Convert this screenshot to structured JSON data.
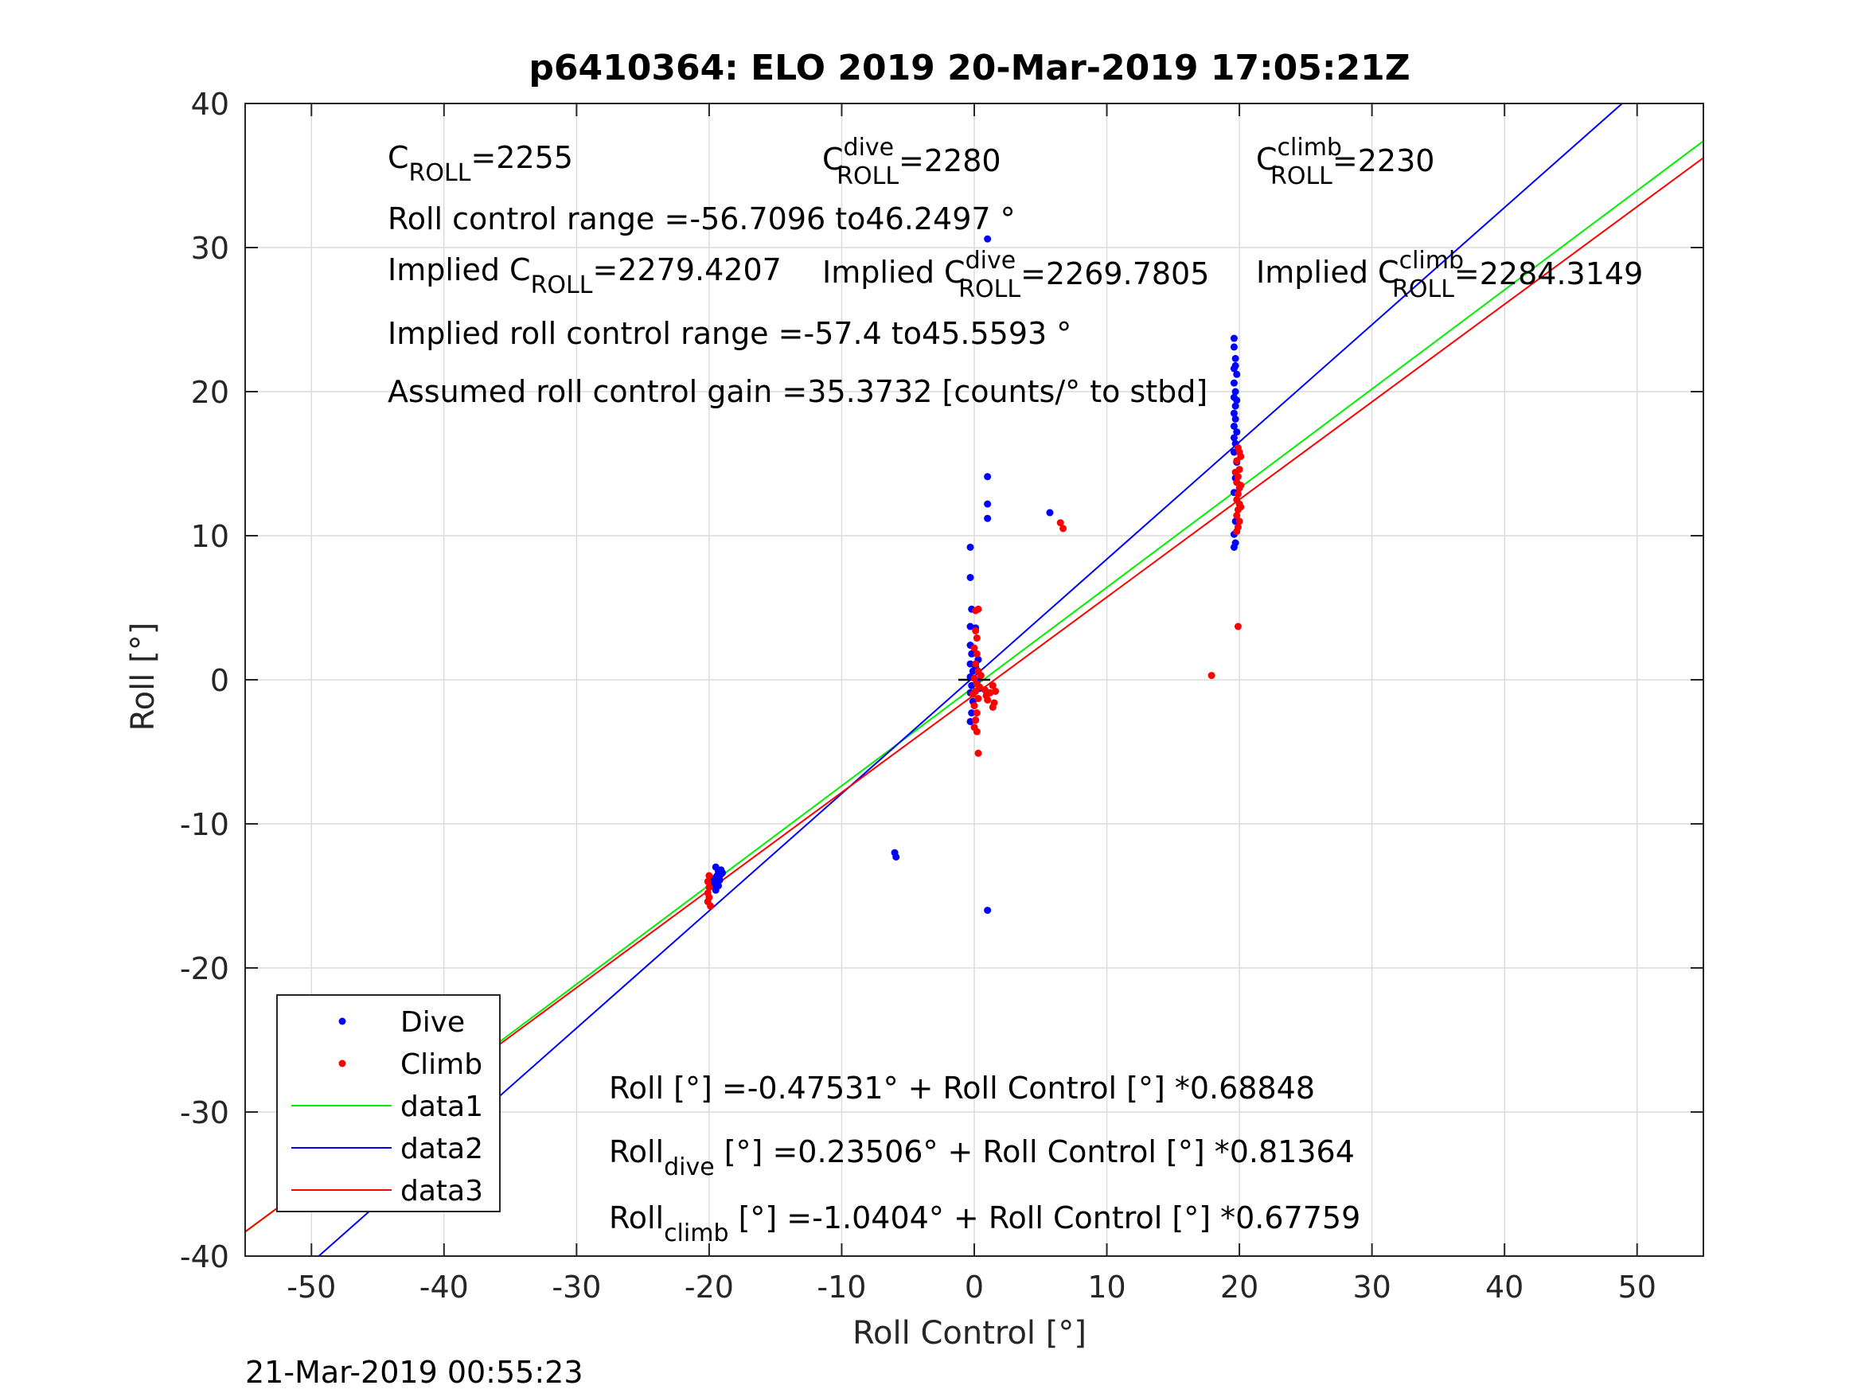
{
  "chart_data": {
    "type": "scatter",
    "title": "p6410364: ELO 2019 20-Mar-2019 17:05:21Z",
    "xlabel": "Roll Control [°]",
    "ylabel": "Roll [°]",
    "xlim": [
      -55,
      55
    ],
    "ylim": [
      -40,
      40
    ],
    "xticks": [
      "-50",
      "-40",
      "-30",
      "-20",
      "-10",
      "0",
      "10",
      "20",
      "30",
      "40",
      "50"
    ],
    "yticks": [
      "40",
      "30",
      "20",
      "10",
      "0",
      "-10",
      "-20",
      "-30",
      "-40"
    ],
    "grid": true,
    "timestamp": "21-Mar-2019 00:55:23",
    "colors": {
      "dive": "#0000ff",
      "climb": "#ff0000",
      "data1": "#00ee00",
      "data2": "#0000ff",
      "data3": "#ff0000"
    },
    "annotations": {
      "c_roll": {
        "base": "C",
        "sub": "ROLL",
        "value": "=2255"
      },
      "c_roll_dive": {
        "base": "C",
        "sup": "dive",
        "sub": "ROLL",
        "value": "=2280"
      },
      "c_roll_climb": {
        "base": "C",
        "sup": "climb",
        "sub": "ROLL",
        "value": "=2230"
      },
      "range": "Roll control range =-56.7096 to46.2497 °",
      "implied_c_roll": {
        "base": "Implied C",
        "sub": "ROLL",
        "value": "=2279.4207"
      },
      "implied_c_roll_dive": {
        "base": "Implied C",
        "sup": "dive",
        "sub": "ROLL",
        "value": "=2269.7805"
      },
      "implied_c_roll_climb": {
        "base": "Implied C",
        "sup": "climb",
        "sub": "ROLL",
        "value": "=2284.3149"
      },
      "implied_range": "Implied roll control range =-57.4 to45.5593 °",
      "gain": "Assumed roll control gain =35.3732 [counts/° to stbd]",
      "fit_all": {
        "base": "Roll",
        "sub": "",
        "value": " [°] =-0.47531° + Roll Control [°] *0.68848"
      },
      "fit_dive": {
        "base": "Roll",
        "sub": "dive",
        "value": " [°] =0.23506° + Roll Control [°] *0.81364"
      },
      "fit_climb": {
        "base": "Roll",
        "sub": "climb",
        "value": " [°] =-1.0404° + Roll Control [°] *0.67759"
      }
    },
    "legend": {
      "placement": "bottom-left",
      "entries": [
        "Dive",
        "Climb",
        "data1",
        "data2",
        "data3"
      ]
    },
    "series": [
      {
        "name": "Dive",
        "kind": "points",
        "points": [
          [
            -19.5,
            -13.0
          ],
          [
            -19.3,
            -13.3
          ],
          [
            -19.1,
            -13.2
          ],
          [
            -19.4,
            -13.6
          ],
          [
            -19.2,
            -13.9
          ],
          [
            -19.6,
            -14.1
          ],
          [
            -19.3,
            -14.3
          ],
          [
            -19.5,
            -14.6
          ],
          [
            -19.1,
            -13.5
          ],
          [
            -19.7,
            -13.8
          ],
          [
            -19.0,
            -13.4
          ],
          [
            -19.6,
            -14.4
          ],
          [
            -6.0,
            -12.0
          ],
          [
            -5.9,
            -12.3
          ],
          [
            1.0,
            30.6
          ],
          [
            1.0,
            14.1
          ],
          [
            1.0,
            12.2
          ],
          [
            1.0,
            11.2
          ],
          [
            1.0,
            -16.0
          ],
          [
            5.7,
            11.6
          ],
          [
            -0.3,
            9.2
          ],
          [
            -0.3,
            7.1
          ],
          [
            -0.2,
            4.9
          ],
          [
            -0.3,
            3.7
          ],
          [
            0.1,
            3.6
          ],
          [
            -0.3,
            2.4
          ],
          [
            -0.2,
            1.8
          ],
          [
            -0.3,
            1.1
          ],
          [
            -0.1,
            0.6
          ],
          [
            -0.3,
            0.2
          ],
          [
            -0.2,
            -0.4
          ],
          [
            -0.3,
            -0.9
          ],
          [
            -0.1,
            -1.5
          ],
          [
            -0.2,
            -2.3
          ],
          [
            0.1,
            -2.8
          ],
          [
            -0.3,
            -2.9
          ],
          [
            0.3,
            1.4
          ],
          [
            0.2,
            -0.1
          ],
          [
            0.4,
            -0.6
          ],
          [
            0.1,
            0.9
          ],
          [
            19.6,
            23.7
          ],
          [
            19.6,
            23.1
          ],
          [
            19.7,
            22.3
          ],
          [
            19.6,
            21.6
          ],
          [
            19.8,
            21.2
          ],
          [
            19.6,
            20.6
          ],
          [
            19.7,
            20.0
          ],
          [
            19.6,
            19.6
          ],
          [
            19.7,
            19.0
          ],
          [
            19.6,
            18.5
          ],
          [
            19.7,
            18.1
          ],
          [
            19.6,
            17.6
          ],
          [
            19.8,
            17.2
          ],
          [
            19.6,
            16.8
          ],
          [
            19.7,
            16.4
          ],
          [
            19.6,
            9.2
          ],
          [
            19.7,
            9.5
          ],
          [
            19.6,
            10.1
          ],
          [
            19.7,
            11.0
          ],
          [
            19.6,
            13.0
          ],
          [
            19.7,
            14.0
          ],
          [
            19.8,
            15.1
          ],
          [
            19.6,
            15.8
          ],
          [
            19.7,
            21.8
          ],
          [
            19.8,
            19.4
          ]
        ]
      },
      {
        "name": "Climb",
        "kind": "points",
        "points": [
          [
            -20.1,
            -14.0
          ],
          [
            -20.0,
            -14.4
          ],
          [
            -20.1,
            -14.8
          ],
          [
            -20.0,
            -15.1
          ],
          [
            -20.1,
            -15.4
          ],
          [
            -19.9,
            -15.7
          ],
          [
            -20.0,
            -13.6
          ],
          [
            0.1,
            4.8
          ],
          [
            0.3,
            4.9
          ],
          [
            0.1,
            3.4
          ],
          [
            0.2,
            2.9
          ],
          [
            0.0,
            2.2
          ],
          [
            0.2,
            1.8
          ],
          [
            0.1,
            1.1
          ],
          [
            0.3,
            0.6
          ],
          [
            0.0,
            0.1
          ],
          [
            0.2,
            -0.3
          ],
          [
            0.1,
            -0.8
          ],
          [
            0.3,
            -1.3
          ],
          [
            0.0,
            -1.8
          ],
          [
            0.2,
            -2.3
          ],
          [
            0.1,
            -2.8
          ],
          [
            0.0,
            -3.3
          ],
          [
            0.2,
            -3.6
          ],
          [
            0.3,
            -5.1
          ],
          [
            -0.1,
            -1.0
          ],
          [
            0.4,
            -0.5
          ],
          [
            0.5,
            0.3
          ],
          [
            0.8,
            -0.7
          ],
          [
            1.0,
            -1.4
          ],
          [
            1.2,
            -0.9
          ],
          [
            1.4,
            -0.4
          ],
          [
            1.5,
            -1.6
          ],
          [
            1.4,
            -1.9
          ],
          [
            1.6,
            -0.8
          ],
          [
            0.9,
            -1.1
          ],
          [
            6.5,
            10.9
          ],
          [
            6.7,
            10.5
          ],
          [
            17.9,
            0.3
          ],
          [
            19.9,
            3.7
          ],
          [
            19.9,
            16.1
          ],
          [
            20.0,
            15.8
          ],
          [
            19.8,
            15.2
          ],
          [
            20.0,
            14.6
          ],
          [
            19.9,
            14.1
          ],
          [
            19.8,
            13.7
          ],
          [
            20.0,
            13.3
          ],
          [
            19.9,
            12.9
          ],
          [
            19.8,
            12.5
          ],
          [
            20.0,
            12.2
          ],
          [
            19.9,
            11.8
          ],
          [
            19.8,
            11.4
          ],
          [
            20.0,
            11.0
          ],
          [
            19.9,
            10.6
          ],
          [
            19.8,
            10.3
          ],
          [
            20.1,
            13.5
          ],
          [
            20.1,
            12.0
          ],
          [
            19.7,
            14.4
          ],
          [
            20.1,
            15.5
          ]
        ]
      },
      {
        "name": "data1",
        "kind": "line",
        "intercept": -0.47531,
        "slope": 0.68848
      },
      {
        "name": "data2",
        "kind": "line",
        "intercept": 0.23506,
        "slope": 0.81364
      },
      {
        "name": "data3",
        "kind": "line",
        "intercept": -1.0404,
        "slope": 0.67759
      }
    ]
  }
}
